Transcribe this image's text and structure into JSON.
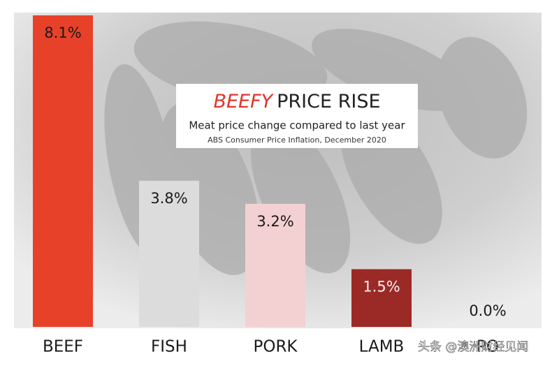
{
  "chart_data": {
    "type": "bar",
    "title_emphasis": "BEEFY",
    "title": "PRICE RISE",
    "subtitle": "Meat price change compared to last year",
    "source": "ABS Consumer Price Inflation, December 2020",
    "categories": [
      "BEEF",
      "FISH",
      "PORK",
      "LAMB",
      "PO"
    ],
    "values": [
      8.1,
      3.8,
      3.2,
      1.5,
      0.0
    ],
    "value_labels": [
      "8.1%",
      "3.8%",
      "3.2%",
      "1.5%",
      "0.0%"
    ],
    "colors": [
      "#e8412a",
      "#dcdcdc",
      "#f3d0d1",
      "#9b2926",
      "#cccccc"
    ],
    "label_colors": [
      "#1a1a1a",
      "#1a1a1a",
      "#1a1a1a",
      "#f3f3f3",
      "#1a1a1a"
    ],
    "watermark": "头条 @澳洲财经见闻"
  }
}
